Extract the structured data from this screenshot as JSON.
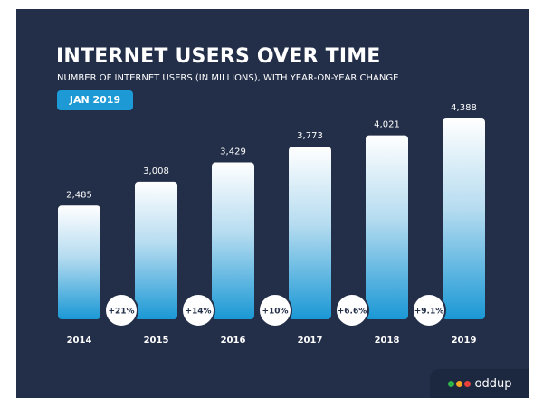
{
  "header": {
    "title": "INTERNET USERS OVER TIME",
    "subtitle": "NUMBER OF INTERNET USERS (IN MILLIONS), WITH YEAR-ON-YEAR CHANGE",
    "date_badge": "JAN 2019"
  },
  "brand": {
    "name": "oddup",
    "dot_colors": [
      "#2db34a",
      "#f6a623",
      "#e8413c"
    ]
  },
  "colors": {
    "background": "#232f49",
    "accent": "#1d9ad6",
    "bar_top": "#ffffff",
    "bar_bottom": "#1d9ad6"
  },
  "chart_data": {
    "type": "bar",
    "title": "INTERNET USERS OVER TIME",
    "subtitle": "NUMBER OF INTERNET USERS (IN MILLIONS), WITH YEAR-ON-YEAR CHANGE",
    "xlabel": "",
    "ylabel": "",
    "categories": [
      "2014",
      "2015",
      "2016",
      "2017",
      "2018",
      "2019"
    ],
    "values": [
      2485,
      3008,
      3429,
      3773,
      4021,
      4388
    ],
    "value_labels": [
      "2,485",
      "3,008",
      "3,429",
      "3,773",
      "4,021",
      "4,388"
    ],
    "yoy_change": [
      "+21%",
      "+14%",
      "+10%",
      "+6.6%",
      "+9.1%"
    ],
    "ylim": [
      0,
      4388
    ],
    "grid": false
  }
}
